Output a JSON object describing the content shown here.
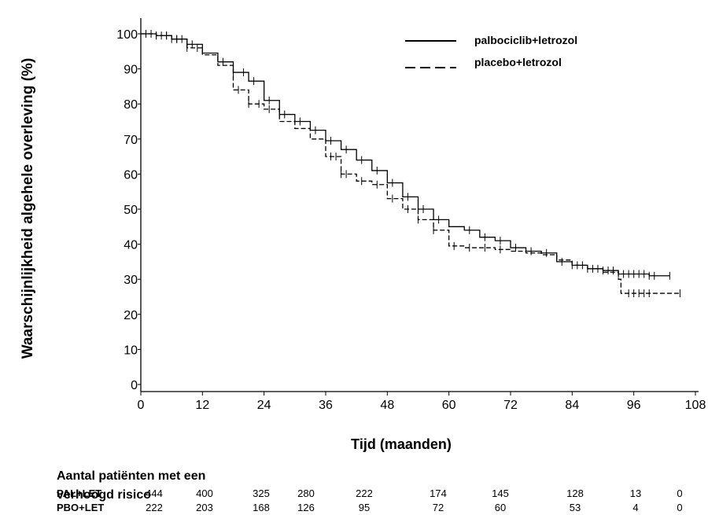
{
  "chart_data": {
    "type": "line",
    "xlabel": "Tijd (maanden)",
    "ylabel": "Waarschijnlijkheid algehele overleving (%)",
    "xlim": [
      0,
      108
    ],
    "ylim": [
      0,
      100
    ],
    "x_ticks": [
      "0",
      "12",
      "24",
      "36",
      "48",
      "60",
      "72",
      "84",
      "96",
      "108"
    ],
    "y_ticks": [
      "0",
      "10",
      "20",
      "30",
      "40",
      "50",
      "60",
      "70",
      "80",
      "90",
      "100"
    ],
    "legend_position": "top-right",
    "series": [
      {
        "name": "palbociclib+letrozol",
        "line_style": "solid",
        "points": [
          [
            0,
            100
          ],
          [
            3,
            99.5
          ],
          [
            6,
            98.5
          ],
          [
            9,
            97
          ],
          [
            12,
            94.5
          ],
          [
            15,
            92
          ],
          [
            18,
            89
          ],
          [
            21,
            86.5
          ],
          [
            24,
            81
          ],
          [
            27,
            77
          ],
          [
            30,
            75
          ],
          [
            33,
            72.5
          ],
          [
            36,
            69.5
          ],
          [
            39,
            67
          ],
          [
            42,
            64
          ],
          [
            45,
            61
          ],
          [
            48,
            57.5
          ],
          [
            51,
            53.5
          ],
          [
            54,
            50
          ],
          [
            57,
            47
          ],
          [
            60,
            45
          ],
          [
            63,
            44
          ],
          [
            66,
            42
          ],
          [
            69,
            41
          ],
          [
            72,
            39
          ],
          [
            75,
            38
          ],
          [
            78,
            37.5
          ],
          [
            81,
            35
          ],
          [
            84,
            34
          ],
          [
            87,
            33
          ],
          [
            90,
            32.5
          ],
          [
            93,
            31.5
          ],
          [
            96,
            31.5
          ],
          [
            99,
            31
          ],
          [
            103,
            31
          ]
        ],
        "censor_x": [
          1,
          2,
          3,
          4,
          5,
          6,
          7,
          8,
          9,
          10,
          16,
          18,
          20,
          22,
          25,
          28,
          31,
          34,
          37,
          40,
          43,
          46,
          49,
          52,
          55,
          58,
          64,
          67,
          70,
          73,
          76,
          79,
          82,
          84,
          85,
          86,
          87,
          88,
          89,
          90,
          91,
          92,
          93,
          94,
          95,
          96,
          97,
          98,
          99,
          100,
          103
        ]
      },
      {
        "name": "placebo+letrozol",
        "line_style": "dashed",
        "points": [
          [
            0,
            100
          ],
          [
            3,
            99.5
          ],
          [
            6,
            98.5
          ],
          [
            9,
            96
          ],
          [
            12,
            94
          ],
          [
            15,
            91
          ],
          [
            18,
            84
          ],
          [
            21,
            80
          ],
          [
            24,
            78.5
          ],
          [
            27,
            75
          ],
          [
            30,
            73
          ],
          [
            33,
            70
          ],
          [
            36,
            65
          ],
          [
            39,
            60
          ],
          [
            42,
            58
          ],
          [
            45,
            57
          ],
          [
            48,
            53
          ],
          [
            51,
            50
          ],
          [
            54,
            47
          ],
          [
            57,
            44
          ],
          [
            60,
            39.5
          ],
          [
            63,
            39
          ],
          [
            66,
            39
          ],
          [
            69,
            38.5
          ],
          [
            72,
            38
          ],
          [
            75,
            37.5
          ],
          [
            78,
            37
          ],
          [
            81,
            35.5
          ],
          [
            84,
            34
          ],
          [
            87,
            33
          ],
          [
            90,
            32
          ],
          [
            93,
            30
          ],
          [
            93.5,
            26
          ],
          [
            96,
            26
          ],
          [
            100,
            26
          ],
          [
            105,
            26
          ]
        ],
        "censor_x": [
          1,
          3,
          5,
          7,
          9,
          11,
          19,
          21,
          23,
          25,
          37,
          38,
          39,
          40,
          43,
          46,
          49,
          52,
          54,
          57,
          61,
          64,
          67,
          70,
          95,
          96,
          97,
          98,
          99,
          105
        ]
      }
    ],
    "risk_table": {
      "title_line1": "Aantal patiënten met een",
      "title_line2": "verhoogd risico",
      "rows": [
        {
          "label": "PAL+LET",
          "values": [
            "444",
            "400",
            "325",
            "280",
            "222",
            "174",
            "145",
            "128",
            "13",
            "0"
          ]
        },
        {
          "label": "PBO+LET",
          "values": [
            "222",
            "203",
            "168",
            "126",
            "95",
            "72",
            "60",
            "53",
            "4",
            "0"
          ]
        }
      ]
    }
  }
}
